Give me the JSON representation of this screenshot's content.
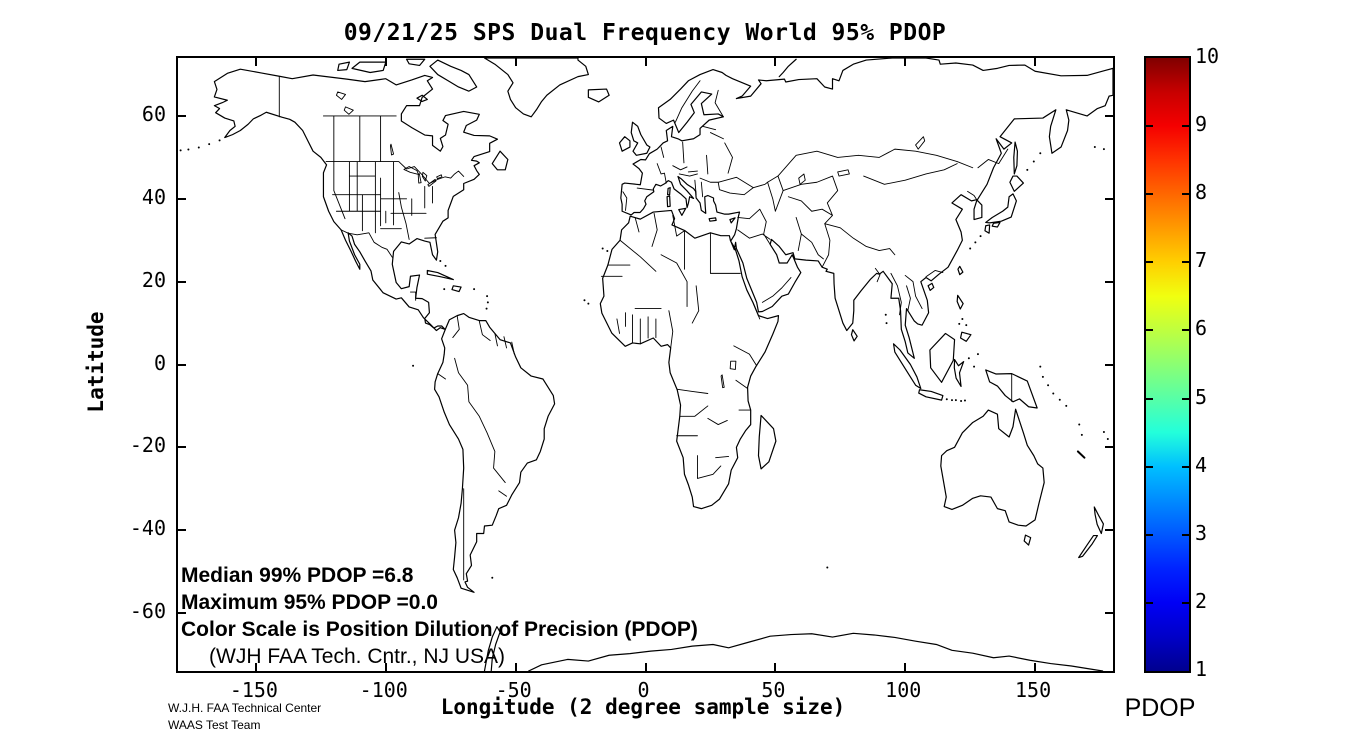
{
  "chart_data": {
    "type": "heatmap",
    "subtype": "geographic world map, country outlines, no shaded data (map is blank white)",
    "title": "09/21/25 SPS Dual Frequency World 95% PDOP",
    "xlabel": "Longitude (2 degree sample size)",
    "ylabel": "Latitude",
    "xlim": [
      -180,
      180
    ],
    "ylim": [
      -74,
      74
    ],
    "x_ticks": [
      -150,
      -100,
      -50,
      0,
      50,
      100,
      150
    ],
    "y_ticks": [
      60,
      40,
      20,
      0,
      -20,
      -40,
      -60
    ],
    "grid": false,
    "annotations": [
      "Median 99% PDOP =6.8",
      "Maximum 95% PDOP =0.0",
      "Color Scale is Position Dilution of Precision (PDOP)",
      "(WJH FAA Tech. Cntr., NJ USA)"
    ],
    "colorbar": {
      "label": "PDOP",
      "min": 1,
      "max": 10,
      "ticks": [
        10,
        9,
        8,
        7,
        6,
        5,
        4,
        3,
        2,
        1
      ],
      "colormap": "jet",
      "stops": [
        {
          "v": 1,
          "c": "#00008F"
        },
        {
          "v": 1.5,
          "c": "#0000C8"
        },
        {
          "v": 2,
          "c": "#0000F5"
        },
        {
          "v": 2.5,
          "c": "#0023FF"
        },
        {
          "v": 3,
          "c": "#0057FF"
        },
        {
          "v": 3.5,
          "c": "#008BFF"
        },
        {
          "v": 4,
          "c": "#00BFFF"
        },
        {
          "v": 4.5,
          "c": "#23FFDB"
        },
        {
          "v": 5,
          "c": "#57FFA7"
        },
        {
          "v": 5.5,
          "c": "#8BFF73"
        },
        {
          "v": 6,
          "c": "#BFFF3F"
        },
        {
          "v": 6.5,
          "c": "#F0FF10"
        },
        {
          "v": 7,
          "c": "#FFCF00"
        },
        {
          "v": 7.5,
          "c": "#FF9B00"
        },
        {
          "v": 8,
          "c": "#FF6700"
        },
        {
          "v": 8.5,
          "c": "#FF3300"
        },
        {
          "v": 9,
          "c": "#F50000"
        },
        {
          "v": 9.5,
          "c": "#C80000"
        },
        {
          "v": 10,
          "c": "#800000"
        }
      ]
    }
  },
  "footer": {
    "line1": "W.J.H. FAA Technical Center",
    "line2": "WAAS Test Team"
  }
}
